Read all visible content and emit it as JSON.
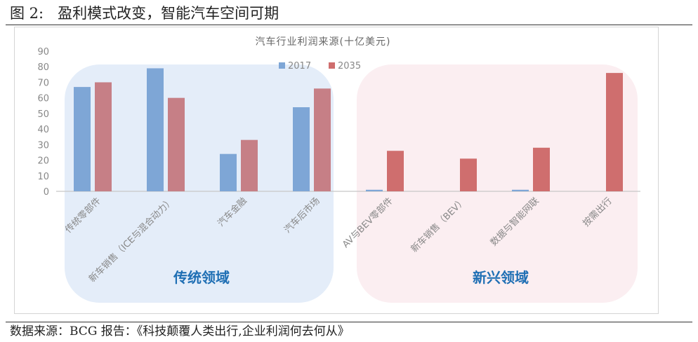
{
  "figure": {
    "title": "图 2:   盈利模式改变，智能汽车空间可期",
    "source": "数据来源：BCG 报告：《科技颠覆人类出行,企业利润何去何从》"
  },
  "chart_data": {
    "type": "bar",
    "title": "汽车行业利润来源(十亿美元)",
    "xlabel": "",
    "ylabel": "",
    "ylim": [
      0,
      90
    ],
    "yticks": [
      "0",
      "10",
      "20",
      "30",
      "40",
      "50",
      "60",
      "70",
      "80",
      "90"
    ],
    "gridlines": false,
    "legend_position": "top-center",
    "categories": [
      "传统零部件",
      "新车销售（ICE与混合动力）",
      "汽车金融",
      "汽车后市场",
      "AV与BEV零部件",
      "新车销售（BEV）",
      "数据与智能网联",
      "按需出行"
    ],
    "series": [
      {
        "name": "2017",
        "values": [
          67,
          79,
          24,
          54,
          1,
          0,
          1,
          0
        ]
      },
      {
        "name": "2035",
        "values": [
          70,
          60,
          33,
          66,
          26,
          21,
          28,
          76
        ]
      }
    ],
    "groups": [
      {
        "label": "传统领域",
        "categories": [
          0,
          1,
          2,
          3
        ]
      },
      {
        "label": "新兴领域",
        "categories": [
          4,
          5,
          6,
          7
        ]
      }
    ],
    "colors": {
      "series_2017": "#7ea6d6",
      "series_2035_traditional": "#c67f86",
      "series_2035_emerging": "#cf6e6e",
      "group_traditional_bg": "#e4edf9",
      "group_emerging_bg": "#fbeef1",
      "group_label": "#1f6fb4",
      "axis_text": "#888888"
    }
  }
}
